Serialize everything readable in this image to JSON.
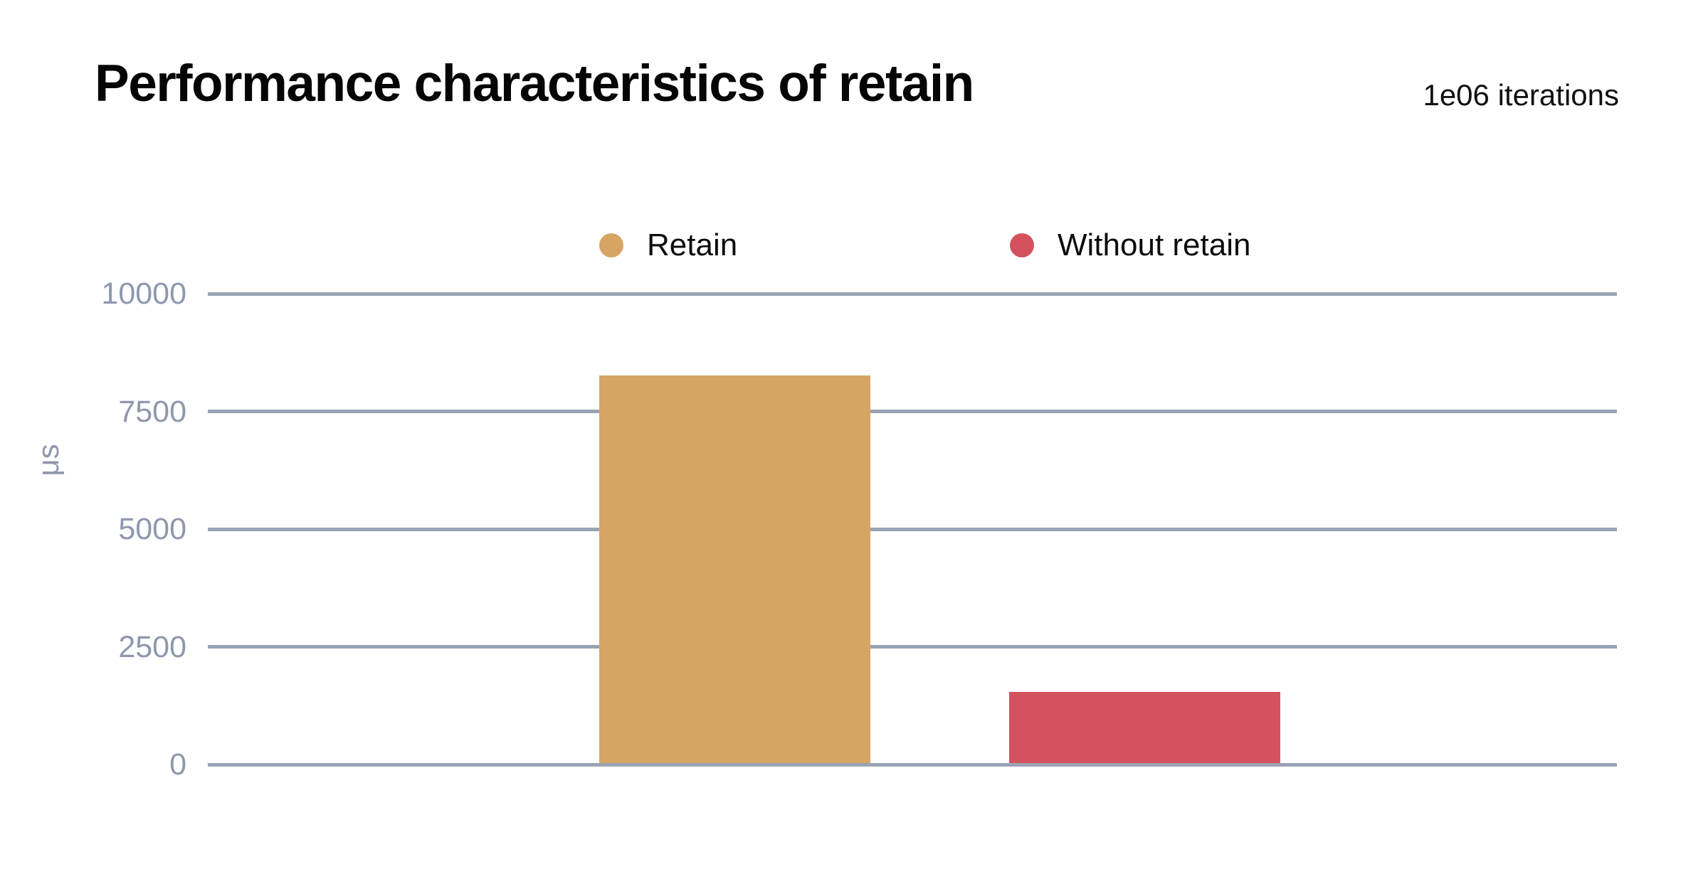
{
  "chart_data": {
    "type": "bar",
    "title": "Performance characteristics of retain",
    "subtitle": "1e06 iterations",
    "ylabel": "μs",
    "xlabel": "",
    "ylim": [
      0,
      10000
    ],
    "yticks": [
      0,
      2500,
      5000,
      7500,
      10000
    ],
    "grid": true,
    "legend_position": "top-center",
    "categories": [
      "Retain",
      "Without retain"
    ],
    "series": [
      {
        "name": "Retain",
        "value": 8260,
        "color": "#d6a563"
      },
      {
        "name": "Without retain",
        "value": 1540,
        "color": "#d4525f"
      }
    ],
    "colors": {
      "grid": "#9aa3b4",
      "tick_label": "#8e97ad",
      "title": "#050505",
      "background": "#ffffff"
    }
  }
}
